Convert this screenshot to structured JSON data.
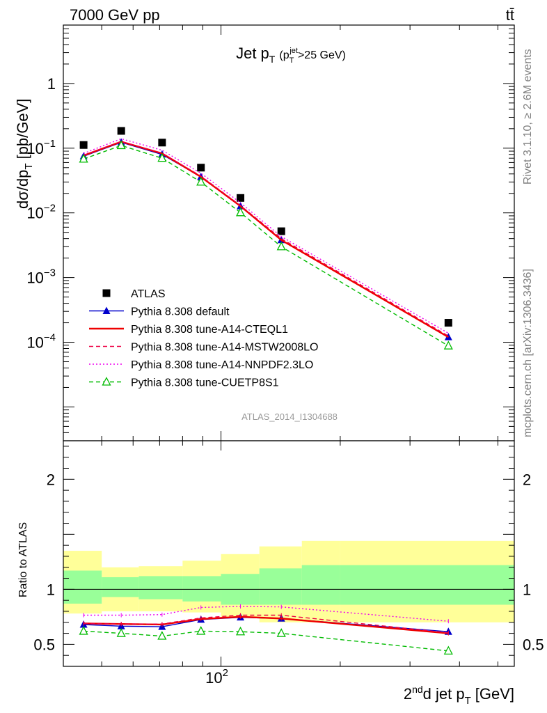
{
  "header": {
    "left": "7000 GeV pp",
    "right": "tt̄",
    "side_top": "Rivet 3.1.10, ≥ 2.6M events",
    "side_bottom": "mcplots.cern.ch [arXiv:1306.3436]"
  },
  "chart_data": {
    "type": "line",
    "title": "Jet pT (pT jet > 25 GeV)",
    "title_main": "Jet p",
    "title_sub": "T",
    "title_paren_open": "(p",
    "title_paren_sub": "T",
    "title_paren_sup": "jet",
    "title_paren_rest": ">25 GeV)",
    "ylabel": "dσ/dp_T [pb/GeV]",
    "ylabel_main": "dσ/dp",
    "ylabel_sub": "T",
    "ylabel_unit": "[pb/GeV]",
    "ratio_ylabel": "Ratio to ATLAS",
    "xlabel": "2nd jet pT [GeV]",
    "xlabel_parts": {
      "a": "2",
      "sup": "nd",
      "b": "d jet p",
      "sub": "T",
      "c": "[GeV]"
    },
    "analysis_tag": "ATLAS_2014_I1304688",
    "xscale": "log",
    "xlim": [
      40,
      550
    ],
    "ylim": [
      3e-06,
      8
    ],
    "ratio_ylim": [
      0.3,
      2.35
    ],
    "x_ticks": [
      {
        "value": 100,
        "base": "10",
        "exp": "2"
      }
    ],
    "y_ticks": [
      {
        "value": 1,
        "label": "1",
        "base": "",
        "exp": ""
      },
      {
        "value": 0.1,
        "label": "",
        "base": "10",
        "exp": "−1"
      },
      {
        "value": 0.01,
        "label": "",
        "base": "10",
        "exp": "−2"
      },
      {
        "value": 0.001,
        "label": "",
        "base": "10",
        "exp": "−3"
      },
      {
        "value": 0.0001,
        "label": "",
        "base": "10",
        "exp": "−4"
      }
    ],
    "ratio_ticks": [
      {
        "value": 0.5,
        "label": "0.5"
      },
      {
        "value": 1,
        "label": "1"
      },
      {
        "value": 2,
        "label": "2"
      }
    ],
    "bin_edges": [
      40,
      50,
      62,
      80,
      100,
      125,
      160,
      200,
      550
    ],
    "bin_centers": [
      45,
      56,
      71,
      89,
      112,
      142,
      180,
      375
    ],
    "series": [
      {
        "name": "ATLAS",
        "color": "#000000",
        "dash": "",
        "marker": "square",
        "values": [
          0.112,
          0.185,
          0.122,
          0.05,
          0.017,
          0.0052,
          null,
          0.0002
        ]
      },
      {
        "name": "Pythia 8.308 default",
        "color": "#0000cc",
        "dash": "",
        "marker": "triangle-filled",
        "values": [
          0.075,
          0.123,
          0.08,
          0.036,
          0.0127,
          0.0038,
          null,
          0.00012
        ],
        "ratio": [
          0.68,
          0.665,
          0.66,
          0.725,
          0.745,
          0.735,
          null,
          0.615
        ]
      },
      {
        "name": "Pythia 8.308 tune-A14-CTEQL1",
        "color": "#ee0000",
        "dash": "",
        "marker": "",
        "values": [
          0.077,
          0.126,
          0.083,
          0.036,
          0.0127,
          0.0038,
          null,
          0.00012
        ],
        "ratio": [
          0.69,
          0.685,
          0.68,
          0.73,
          0.75,
          0.735,
          null,
          0.6
        ]
      },
      {
        "name": "Pythia 8.308 tune-A14-MSTW2008LO",
        "color": "#ee0044",
        "dash": "6,4",
        "marker": "",
        "values": [
          0.078,
          0.127,
          0.084,
          0.037,
          0.013,
          0.004,
          null,
          0.000125
        ],
        "ratio": [
          0.69,
          0.685,
          0.685,
          0.74,
          0.765,
          0.765,
          null,
          0.605
        ]
      },
      {
        "name": "Pythia 8.308 tune-A14-NNPDF2.3LO",
        "color": "#ee00ee",
        "dash": "2,3",
        "marker": "",
        "values": [
          0.083,
          0.14,
          0.093,
          0.041,
          0.0143,
          0.0043,
          null,
          0.000138
        ],
        "ratio": [
          0.765,
          0.765,
          0.77,
          0.835,
          0.845,
          0.84,
          null,
          0.71
        ]
      },
      {
        "name": "Pythia 8.308 tune-CUETP8S1",
        "color": "#00bb00",
        "dash": "6,4",
        "marker": "triangle-open",
        "values": [
          0.068,
          0.11,
          0.07,
          0.03,
          0.0101,
          0.003,
          null,
          8.8e-05
        ],
        "ratio": [
          0.62,
          0.6,
          0.575,
          0.62,
          0.615,
          0.6,
          null,
          0.44
        ]
      }
    ],
    "ratio_bands": {
      "inner": [
        [
          0.87,
          1.17
        ],
        [
          0.93,
          1.11
        ],
        [
          0.91,
          1.12
        ],
        [
          0.89,
          1.12
        ],
        [
          0.86,
          1.14
        ],
        [
          0.86,
          1.19
        ],
        [
          0.86,
          1.22
        ],
        [
          0.86,
          1.22
        ]
      ],
      "outer": [
        [
          0.78,
          1.35
        ],
        [
          0.8,
          1.2
        ],
        [
          0.8,
          1.21
        ],
        [
          0.79,
          1.26
        ],
        [
          0.74,
          1.32
        ],
        [
          0.7,
          1.39
        ],
        [
          0.7,
          1.44
        ],
        [
          0.7,
          1.44
        ]
      ],
      "inner_color": "#99ff99",
      "outer_color": "#ffff99"
    }
  }
}
